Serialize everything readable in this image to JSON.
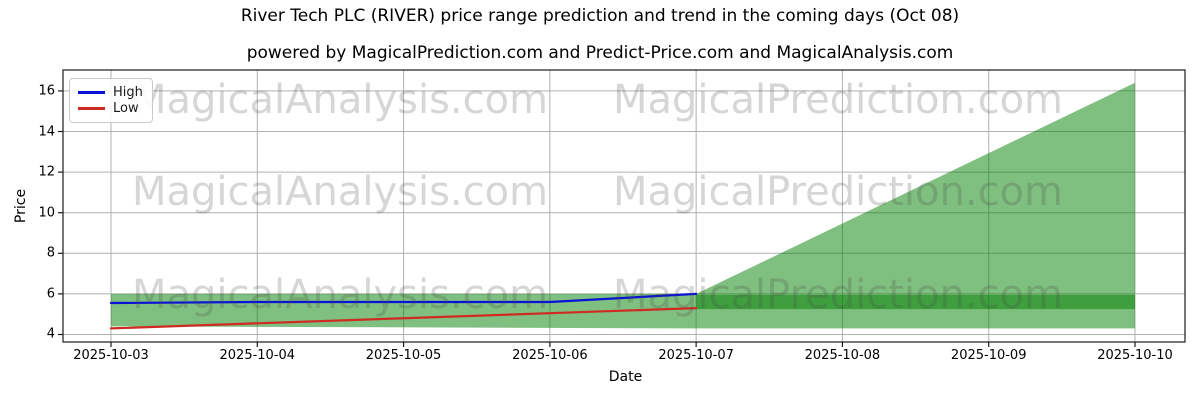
{
  "title": "River Tech PLC (RIVER) price range prediction and trend in the coming days (Oct 08)",
  "subtitle": "powered by MagicalPrediction.com and Predict-Price.com and MagicalAnalysis.com",
  "watermarks": {
    "left_text": "MagicalAnalysis.com",
    "right_text": "MagicalPrediction.com"
  },
  "legend": [
    {
      "label": "High",
      "color": "#0b12d8"
    },
    {
      "label": "Low",
      "color": "#cf2b22"
    }
  ],
  "axes": {
    "y_label": "Price",
    "x_label": "Date"
  },
  "chart_data": {
    "type": "line",
    "title": "River Tech PLC (RIVER) price range prediction and trend in the coming days (Oct 08)",
    "x": [
      "2025-10-03",
      "2025-10-04",
      "2025-10-05",
      "2025-10-06",
      "2025-10-07",
      "2025-10-08",
      "2025-10-09",
      "2025-10-10"
    ],
    "xlabel": "Date",
    "ylabel": "Price",
    "yticks": [
      4,
      6,
      8,
      10,
      12,
      14,
      16
    ],
    "ylim": [
      3.63,
      17.03
    ],
    "grid": true,
    "grid_color": "#b0b0b0",
    "legend_position": "upper left",
    "series": [
      {
        "name": "High",
        "color": "#0b12d8",
        "x_start_index": 0,
        "values": [
          5.55,
          5.6,
          5.6,
          5.6,
          6.0
        ]
      },
      {
        "name": "Low",
        "color": "#cf2b22",
        "x_start_index": 0,
        "values": [
          4.3,
          4.55,
          4.8,
          5.05,
          5.3
        ]
      }
    ],
    "bands": [
      {
        "name": "observed-range",
        "fill": "rgba(0,128,0,0.5)",
        "x_index": [
          0,
          4
        ],
        "top": [
          6.0,
          6.0
        ],
        "bottom": [
          4.4,
          4.3
        ]
      },
      {
        "name": "forecast-fan",
        "fill": "rgba(0,128,0,0.5)",
        "x_index": [
          4,
          7
        ],
        "top": [
          6.0,
          16.4
        ],
        "bottom": [
          4.3,
          4.3
        ]
      },
      {
        "name": "forecast-likely-range",
        "fill": "rgba(0,128,0,0.5)",
        "x_index": [
          4,
          7
        ],
        "top": [
          5.95,
          5.95
        ],
        "bottom": [
          5.25,
          5.25
        ]
      }
    ]
  }
}
